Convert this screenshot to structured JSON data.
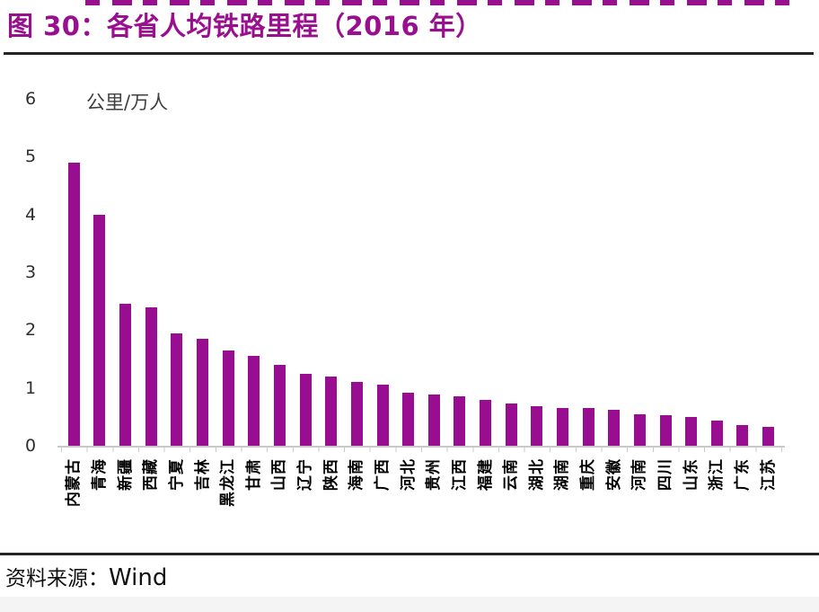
{
  "figure": {
    "title": "图 30：各省人均铁路里程（2016 年）",
    "source_label": "资料来源：",
    "source_name": "Wind"
  },
  "chart_data": {
    "type": "bar",
    "title": "各省人均铁路里程（2016 年）",
    "unit_label": "公里/万人",
    "xlabel": "",
    "ylabel": "公里/万人",
    "ylim": [
      0,
      6
    ],
    "yticks": [
      0,
      1,
      2,
      3,
      4,
      5,
      6
    ],
    "grid": false,
    "legend": false,
    "bar_color": "#990E90",
    "categories": [
      "内蒙古",
      "青海",
      "新疆",
      "西藏",
      "宁夏",
      "吉林",
      "黑龙江",
      "甘肃",
      "山西",
      "辽宁",
      "陕西",
      "海南",
      "广西",
      "河北",
      "贵州",
      "江西",
      "福建",
      "云南",
      "湖北",
      "湖南",
      "重庆",
      "安徽",
      "河南",
      "四川",
      "山东",
      "浙江",
      "广东",
      "江苏"
    ],
    "values": [
      4.9,
      4.0,
      2.45,
      2.4,
      1.95,
      1.85,
      1.65,
      1.55,
      1.4,
      1.25,
      1.2,
      1.1,
      1.05,
      0.92,
      0.88,
      0.85,
      0.79,
      0.73,
      0.68,
      0.66,
      0.65,
      0.62,
      0.55,
      0.53,
      0.5,
      0.43,
      0.36,
      0.33
    ]
  },
  "colors": {
    "accent": "#99108E",
    "bar": "#990E90",
    "axis_line": "#C9C9C9",
    "tick_text": "#2E2E2E",
    "rule": "#242424",
    "bottom_band": "#F4F4F4"
  }
}
